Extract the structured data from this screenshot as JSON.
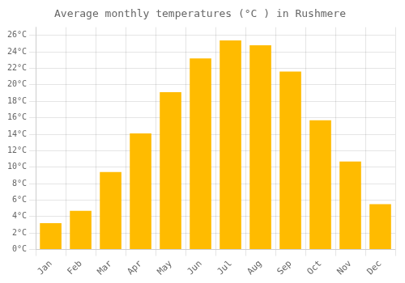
{
  "chart_data": {
    "type": "bar",
    "title": "Average monthly temperatures (°C ) in Rushmere",
    "categories": [
      "Jan",
      "Feb",
      "Mar",
      "Apr",
      "May",
      "Jun",
      "Jul",
      "Aug",
      "Sep",
      "Oct",
      "Nov",
      "Dec"
    ],
    "values": [
      3.2,
      4.7,
      9.4,
      14.1,
      19.1,
      23.2,
      25.4,
      24.8,
      21.6,
      15.7,
      10.7,
      5.5
    ],
    "color": "#FFBB00",
    "ylim": [
      0,
      27
    ],
    "yticks": [
      {
        "value": 0,
        "label": "0°C"
      },
      {
        "value": 2,
        "label": "2°C"
      },
      {
        "value": 4,
        "label": "4°C"
      },
      {
        "value": 6,
        "label": "6°C"
      },
      {
        "value": 8,
        "label": "8°C"
      },
      {
        "value": 10,
        "label": "10°C"
      },
      {
        "value": 12,
        "label": "12°C"
      },
      {
        "value": 14,
        "label": "14°C"
      },
      {
        "value": 16,
        "label": "16°C"
      },
      {
        "value": 18,
        "label": "18°C"
      },
      {
        "value": 20,
        "label": "20°C"
      },
      {
        "value": 22,
        "label": "22°C"
      },
      {
        "value": 24,
        "label": "24°C"
      },
      {
        "value": 26,
        "label": "26°C"
      }
    ],
    "grid": true
  }
}
